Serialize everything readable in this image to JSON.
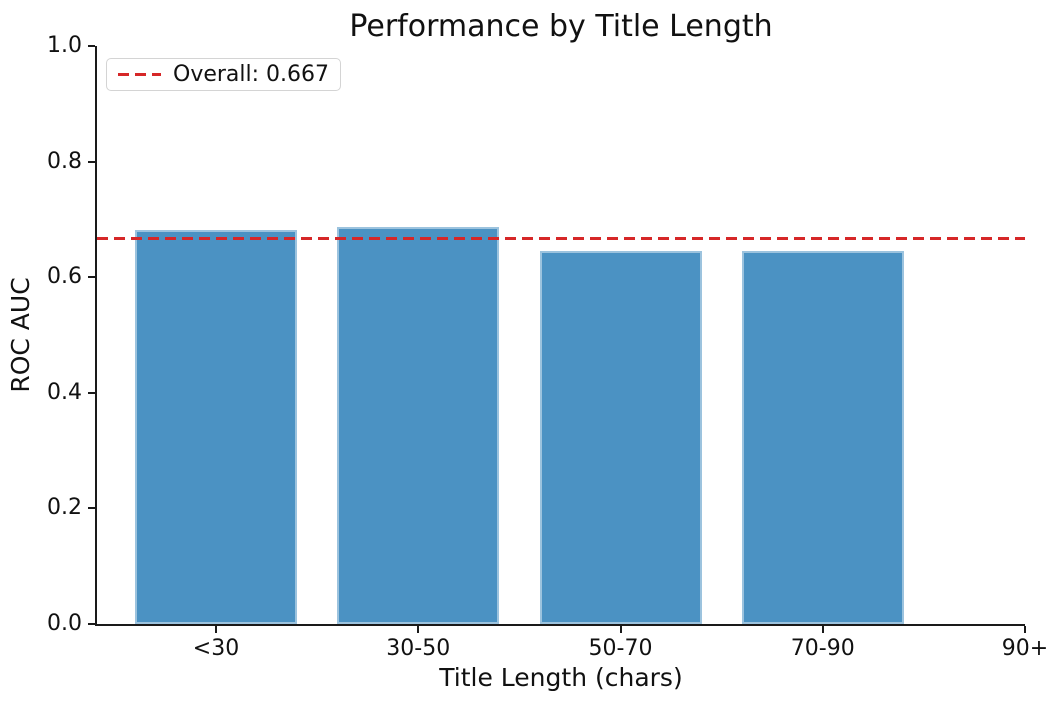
{
  "chart_data": {
    "type": "bar",
    "title": "Performance by Title Length",
    "xlabel": "Title Length (chars)",
    "ylabel": "ROC AUC",
    "categories": [
      "<30",
      "30-50",
      "50-70",
      "70-90",
      "90+"
    ],
    "values": [
      0.681,
      0.687,
      0.645,
      0.645,
      0.0
    ],
    "ylim": [
      0.0,
      1.0
    ],
    "yticks": [
      0.0,
      0.2,
      0.4,
      0.6,
      0.8,
      1.0
    ],
    "ytick_labels": [
      "0.0",
      "0.2",
      "0.4",
      "0.6",
      "0.8",
      "1.0"
    ],
    "grid": false,
    "bar_color": "#4b92c3",
    "axis_color": "#1a1a1a",
    "legend_position": "upper left",
    "reference_line": {
      "value": 0.667,
      "label": "Overall: 0.667",
      "color": "#d62728",
      "style": "dashed"
    }
  }
}
